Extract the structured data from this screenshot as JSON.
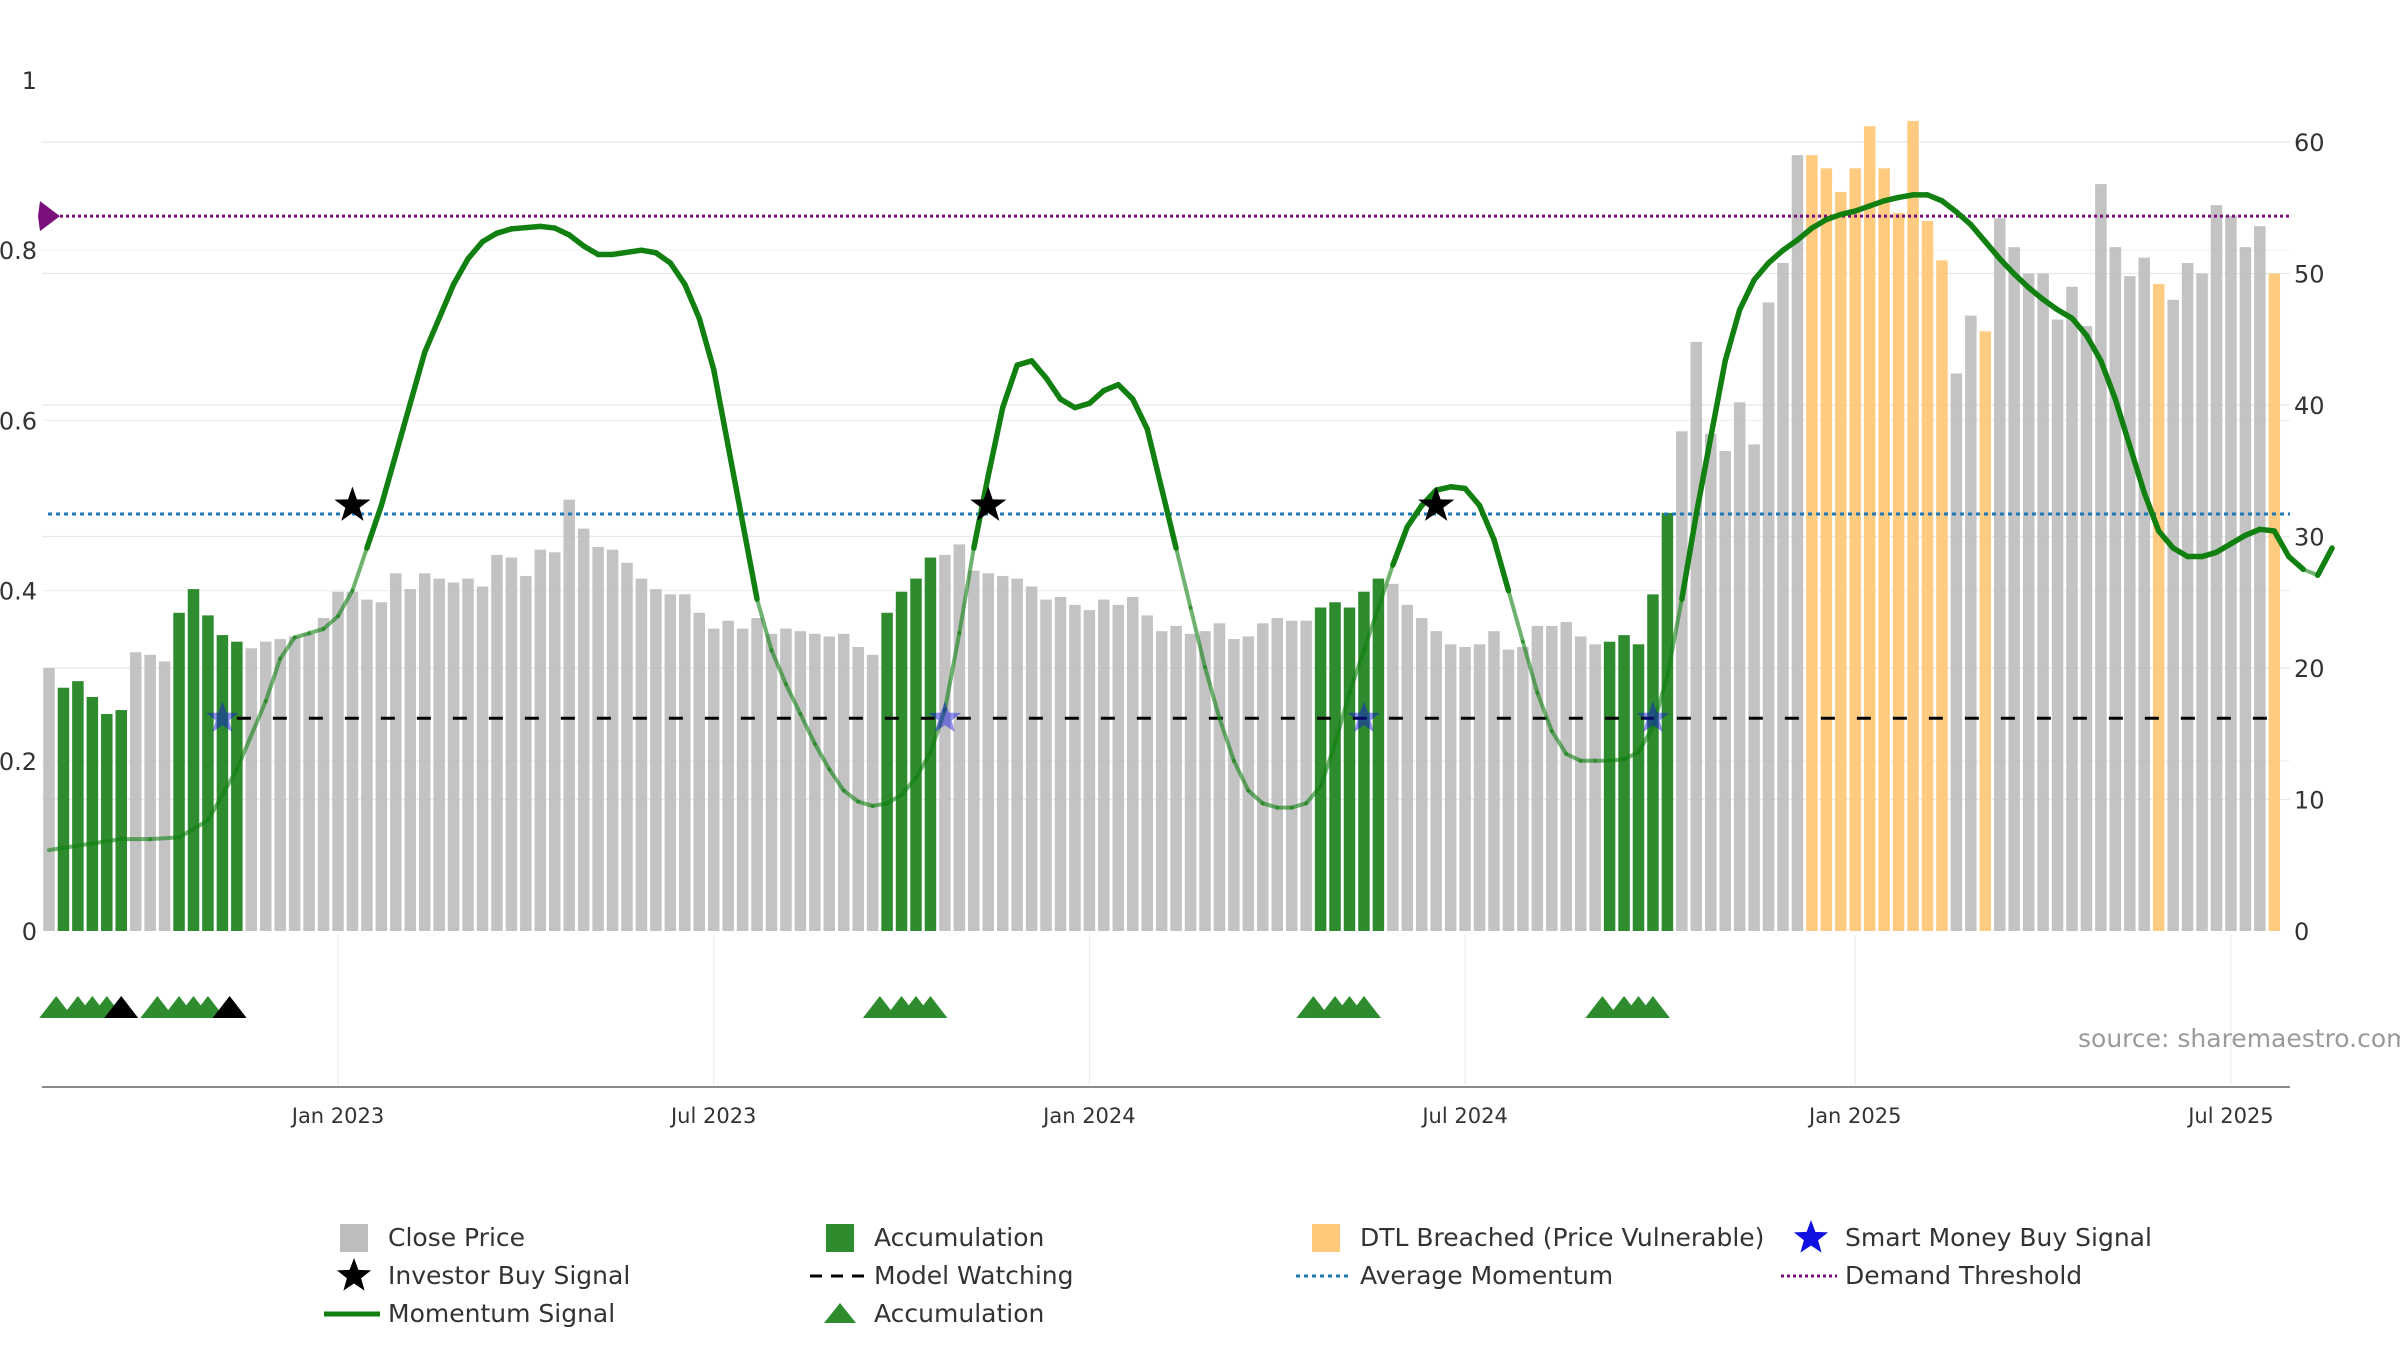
{
  "source_note": "source: sharemaestro.com",
  "colors": {
    "close_price": "#bdbdbd",
    "accumulation": "#2e8b2e",
    "dtl_breached": "#ffc87a",
    "momentum": "#118011",
    "average_momentum": "#1f77b4",
    "demand_threshold": "#7b0f7b",
    "model_watching": "#000000",
    "smart_money": "#1010e0",
    "investor_buy": "#000000"
  },
  "legend": [
    {
      "label": "Close Price",
      "icon": "grey-square-icon",
      "col": 0,
      "row": 0
    },
    {
      "label": "Investor Buy Signal",
      "icon": "black-star-icon",
      "col": 0,
      "row": 1
    },
    {
      "label": "Momentum Signal",
      "icon": "green-line-icon",
      "col": 0,
      "row": 2
    },
    {
      "label": "Accumulation",
      "icon": "green-square-icon",
      "col": 1,
      "row": 0
    },
    {
      "label": "Model Watching",
      "icon": "black-dashed-line-icon",
      "col": 1,
      "row": 1
    },
    {
      "label": "Accumulation",
      "icon": "green-triangle-icon",
      "col": 1,
      "row": 2
    },
    {
      "label": "DTL Breached (Price Vulnerable)",
      "icon": "orange-square-icon",
      "col": 2,
      "row": 0
    },
    {
      "label": "Average Momentum",
      "icon": "blue-dotted-line-icon",
      "col": 2,
      "row": 1
    },
    {
      "label": "Smart Money Buy Signal",
      "icon": "blue-star-icon",
      "col": 3,
      "row": 0
    },
    {
      "label": "Demand Threshold",
      "icon": "purple-dotted-line-icon",
      "col": 3,
      "row": 1
    }
  ],
  "chart_data": {
    "type": "bar",
    "x_axis": {
      "ticks": [
        "Jan 2023",
        "Jul 2023",
        "Jan 2024",
        "Jul 2024",
        "Jan 2025",
        "Jul 2025"
      ],
      "tick_weeks": [
        20,
        46,
        72,
        98,
        125,
        151
      ]
    },
    "left_axis": {
      "range": [
        0,
        1
      ],
      "ticks": [
        "0",
        "0.2",
        "0.4",
        "0.6",
        "0.8",
        "1"
      ],
      "tick_values": [
        0,
        0.2,
        0.4,
        0.6,
        0.8,
        1
      ]
    },
    "right_axis": {
      "range": [
        0,
        60
      ],
      "ticks": [
        "0",
        "10",
        "20",
        "30",
        "40",
        "50",
        "60"
      ],
      "tick_values": [
        0,
        10,
        20,
        30,
        40,
        50,
        60
      ]
    },
    "grid": true,
    "close_price": [
      20.0,
      18.5,
      19.0,
      17.8,
      16.5,
      16.8,
      21.2,
      21.0,
      20.5,
      24.2,
      26.0,
      24.0,
      22.5,
      22.0,
      21.5,
      22.0,
      22.2,
      22.4,
      22.6,
      23.8,
      25.8,
      25.8,
      25.2,
      25.0,
      27.2,
      26.0,
      27.2,
      26.8,
      26.5,
      26.8,
      26.2,
      28.6,
      28.4,
      27.0,
      29.0,
      28.8,
      32.8,
      30.6,
      29.2,
      29.0,
      28.0,
      26.8,
      26.0,
      25.6,
      25.6,
      24.2,
      23.0,
      23.6,
      23.0,
      23.8,
      22.6,
      23.0,
      22.8,
      22.6,
      22.4,
      22.6,
      21.6,
      21.0,
      24.2,
      25.8,
      26.8,
      28.4,
      28.6,
      29.4,
      27.4,
      27.2,
      27.0,
      26.8,
      26.2,
      25.2,
      25.4,
      24.8,
      24.4,
      25.2,
      24.8,
      25.4,
      24.0,
      22.8,
      23.2,
      22.6,
      22.8,
      23.4,
      22.2,
      22.4,
      23.4,
      23.8,
      23.6,
      23.6,
      24.6,
      25.0,
      24.6,
      25.8,
      26.8,
      26.4,
      24.8,
      23.8,
      22.8,
      21.8,
      21.6,
      21.8,
      22.8,
      21.4,
      21.6,
      23.2,
      23.2,
      23.5,
      22.4,
      21.8,
      22.0,
      22.5,
      21.8,
      25.6,
      31.8,
      38.0,
      44.8,
      37.8,
      36.5,
      40.2,
      37.0,
      47.8,
      50.8,
      59.0,
      59.0,
      58.0,
      56.2,
      58.0,
      61.2,
      58.0,
      54.6,
      61.6,
      54.0,
      51.0,
      42.4,
      46.8,
      45.6,
      54.2,
      52.0,
      50.0,
      50.0,
      46.5,
      49.0,
      46.0,
      56.8,
      52.0,
      49.8,
      51.2,
      49.2,
      48.0,
      50.8,
      50.0,
      55.2,
      54.4,
      52.0,
      53.6,
      50.0
    ],
    "accumulation_weeks": [
      1,
      2,
      3,
      4,
      5,
      9,
      10,
      11,
      12,
      13,
      58,
      59,
      60,
      61,
      88,
      89,
      90,
      91,
      92,
      108,
      109,
      110,
      111,
      112
    ],
    "dtl_breached_weeks": [
      122,
      123,
      124,
      125,
      126,
      127,
      128,
      129,
      130,
      131,
      134,
      146,
      154,
      155
    ],
    "momentum_signal": [
      [
        0,
        0.095
      ],
      [
        3,
        0.103
      ],
      [
        5,
        0.108
      ],
      [
        7,
        0.108
      ],
      [
        9,
        0.11
      ],
      [
        11,
        0.13
      ],
      [
        13,
        0.19
      ],
      [
        15,
        0.27
      ],
      [
        16,
        0.32
      ],
      [
        17,
        0.345
      ],
      [
        18,
        0.35
      ],
      [
        19,
        0.355
      ],
      [
        20,
        0.37
      ],
      [
        21,
        0.4
      ],
      [
        22,
        0.45
      ],
      [
        23,
        0.5
      ],
      [
        24,
        0.56
      ],
      [
        25,
        0.62
      ],
      [
        26,
        0.68
      ],
      [
        27,
        0.72
      ],
      [
        28,
        0.76
      ],
      [
        29,
        0.79
      ],
      [
        30,
        0.81
      ],
      [
        31,
        0.82
      ],
      [
        32,
        0.825
      ],
      [
        34,
        0.828
      ],
      [
        35,
        0.826
      ],
      [
        36,
        0.818
      ],
      [
        37,
        0.805
      ],
      [
        38,
        0.795
      ],
      [
        39,
        0.795
      ],
      [
        41,
        0.8
      ],
      [
        42,
        0.797
      ],
      [
        43,
        0.785
      ],
      [
        44,
        0.76
      ],
      [
        45,
        0.72
      ],
      [
        46,
        0.66
      ],
      [
        47,
        0.57
      ],
      [
        48,
        0.48
      ],
      [
        49,
        0.39
      ],
      [
        50,
        0.33
      ],
      [
        51,
        0.29
      ],
      [
        52,
        0.255
      ],
      [
        53,
        0.22
      ],
      [
        54,
        0.19
      ],
      [
        55,
        0.165
      ],
      [
        56,
        0.152
      ],
      [
        57,
        0.147
      ],
      [
        58,
        0.15
      ],
      [
        59,
        0.16
      ],
      [
        60,
        0.18
      ],
      [
        61,
        0.21
      ],
      [
        62,
        0.26
      ],
      [
        63,
        0.35
      ],
      [
        64,
        0.45
      ],
      [
        65,
        0.535
      ],
      [
        66,
        0.615
      ],
      [
        67,
        0.665
      ],
      [
        68,
        0.67
      ],
      [
        69,
        0.65
      ],
      [
        70,
        0.625
      ],
      [
        71,
        0.615
      ],
      [
        72,
        0.62
      ],
      [
        73,
        0.635
      ],
      [
        74,
        0.642
      ],
      [
        75,
        0.625
      ],
      [
        76,
        0.59
      ],
      [
        77,
        0.52
      ],
      [
        78,
        0.45
      ],
      [
        79,
        0.38
      ],
      [
        80,
        0.31
      ],
      [
        81,
        0.25
      ],
      [
        82,
        0.2
      ],
      [
        83,
        0.165
      ],
      [
        84,
        0.15
      ],
      [
        85,
        0.145
      ],
      [
        86,
        0.145
      ],
      [
        87,
        0.15
      ],
      [
        88,
        0.17
      ],
      [
        89,
        0.22
      ],
      [
        90,
        0.28
      ],
      [
        91,
        0.33
      ],
      [
        92,
        0.38
      ],
      [
        93,
        0.43
      ],
      [
        94,
        0.475
      ],
      [
        95,
        0.5
      ],
      [
        96,
        0.518
      ],
      [
        97,
        0.522
      ],
      [
        98,
        0.52
      ],
      [
        99,
        0.5
      ],
      [
        100,
        0.46
      ],
      [
        101,
        0.4
      ],
      [
        102,
        0.34
      ],
      [
        103,
        0.28
      ],
      [
        104,
        0.235
      ],
      [
        105,
        0.208
      ],
      [
        106,
        0.2
      ],
      [
        107,
        0.2
      ],
      [
        108,
        0.2
      ],
      [
        109,
        0.202
      ],
      [
        110,
        0.21
      ],
      [
        111,
        0.24
      ],
      [
        112,
        0.3
      ],
      [
        113,
        0.39
      ],
      [
        114,
        0.49
      ],
      [
        115,
        0.58
      ],
      [
        116,
        0.67
      ],
      [
        117,
        0.73
      ],
      [
        118,
        0.765
      ],
      [
        119,
        0.785
      ],
      [
        120,
        0.8
      ],
      [
        121,
        0.812
      ],
      [
        122,
        0.826
      ],
      [
        123,
        0.836
      ],
      [
        124,
        0.842
      ],
      [
        125,
        0.846
      ],
      [
        126,
        0.852
      ],
      [
        127,
        0.858
      ],
      [
        128,
        0.862
      ],
      [
        129,
        0.865
      ],
      [
        130,
        0.865
      ],
      [
        131,
        0.858
      ],
      [
        132,
        0.845
      ],
      [
        133,
        0.83
      ],
      [
        134,
        0.81
      ],
      [
        135,
        0.79
      ],
      [
        136,
        0.772
      ],
      [
        137,
        0.756
      ],
      [
        138,
        0.742
      ],
      [
        139,
        0.73
      ],
      [
        140,
        0.72
      ],
      [
        141,
        0.7
      ],
      [
        142,
        0.67
      ],
      [
        143,
        0.625
      ],
      [
        144,
        0.57
      ],
      [
        145,
        0.515
      ],
      [
        146,
        0.47
      ],
      [
        147,
        0.45
      ],
      [
        148,
        0.44
      ],
      [
        149,
        0.44
      ],
      [
        150,
        0.445
      ],
      [
        151,
        0.455
      ],
      [
        152,
        0.465
      ],
      [
        153,
        0.472
      ],
      [
        154,
        0.47
      ],
      [
        155,
        0.44
      ],
      [
        156,
        0.425
      ],
      [
        157,
        0.418
      ],
      [
        158,
        0.45
      ]
    ],
    "average_momentum": 0.49,
    "demand_threshold": 0.84,
    "model_watching": 0.25,
    "model_watching_start_week": 13,
    "smart_money_buy_signals": [
      {
        "week": 12,
        "value": 0.25
      },
      {
        "week": 62,
        "value": 0.25
      },
      {
        "week": 91,
        "value": 0.25
      },
      {
        "week": 111,
        "value": 0.25
      }
    ],
    "investor_buy_signals": [
      {
        "week": 21,
        "value": 0.5
      },
      {
        "week": 65,
        "value": 0.5
      },
      {
        "week": 96,
        "value": 0.5
      }
    ],
    "accumulation_triangles_green": [
      0.5,
      2,
      3,
      4,
      7.5,
      9,
      10,
      11,
      57.5,
      59,
      60,
      61,
      87.5,
      89,
      90,
      91,
      107.5,
      109,
      110,
      111
    ],
    "accumulation_triangles_black": [
      5,
      12.5
    ]
  }
}
